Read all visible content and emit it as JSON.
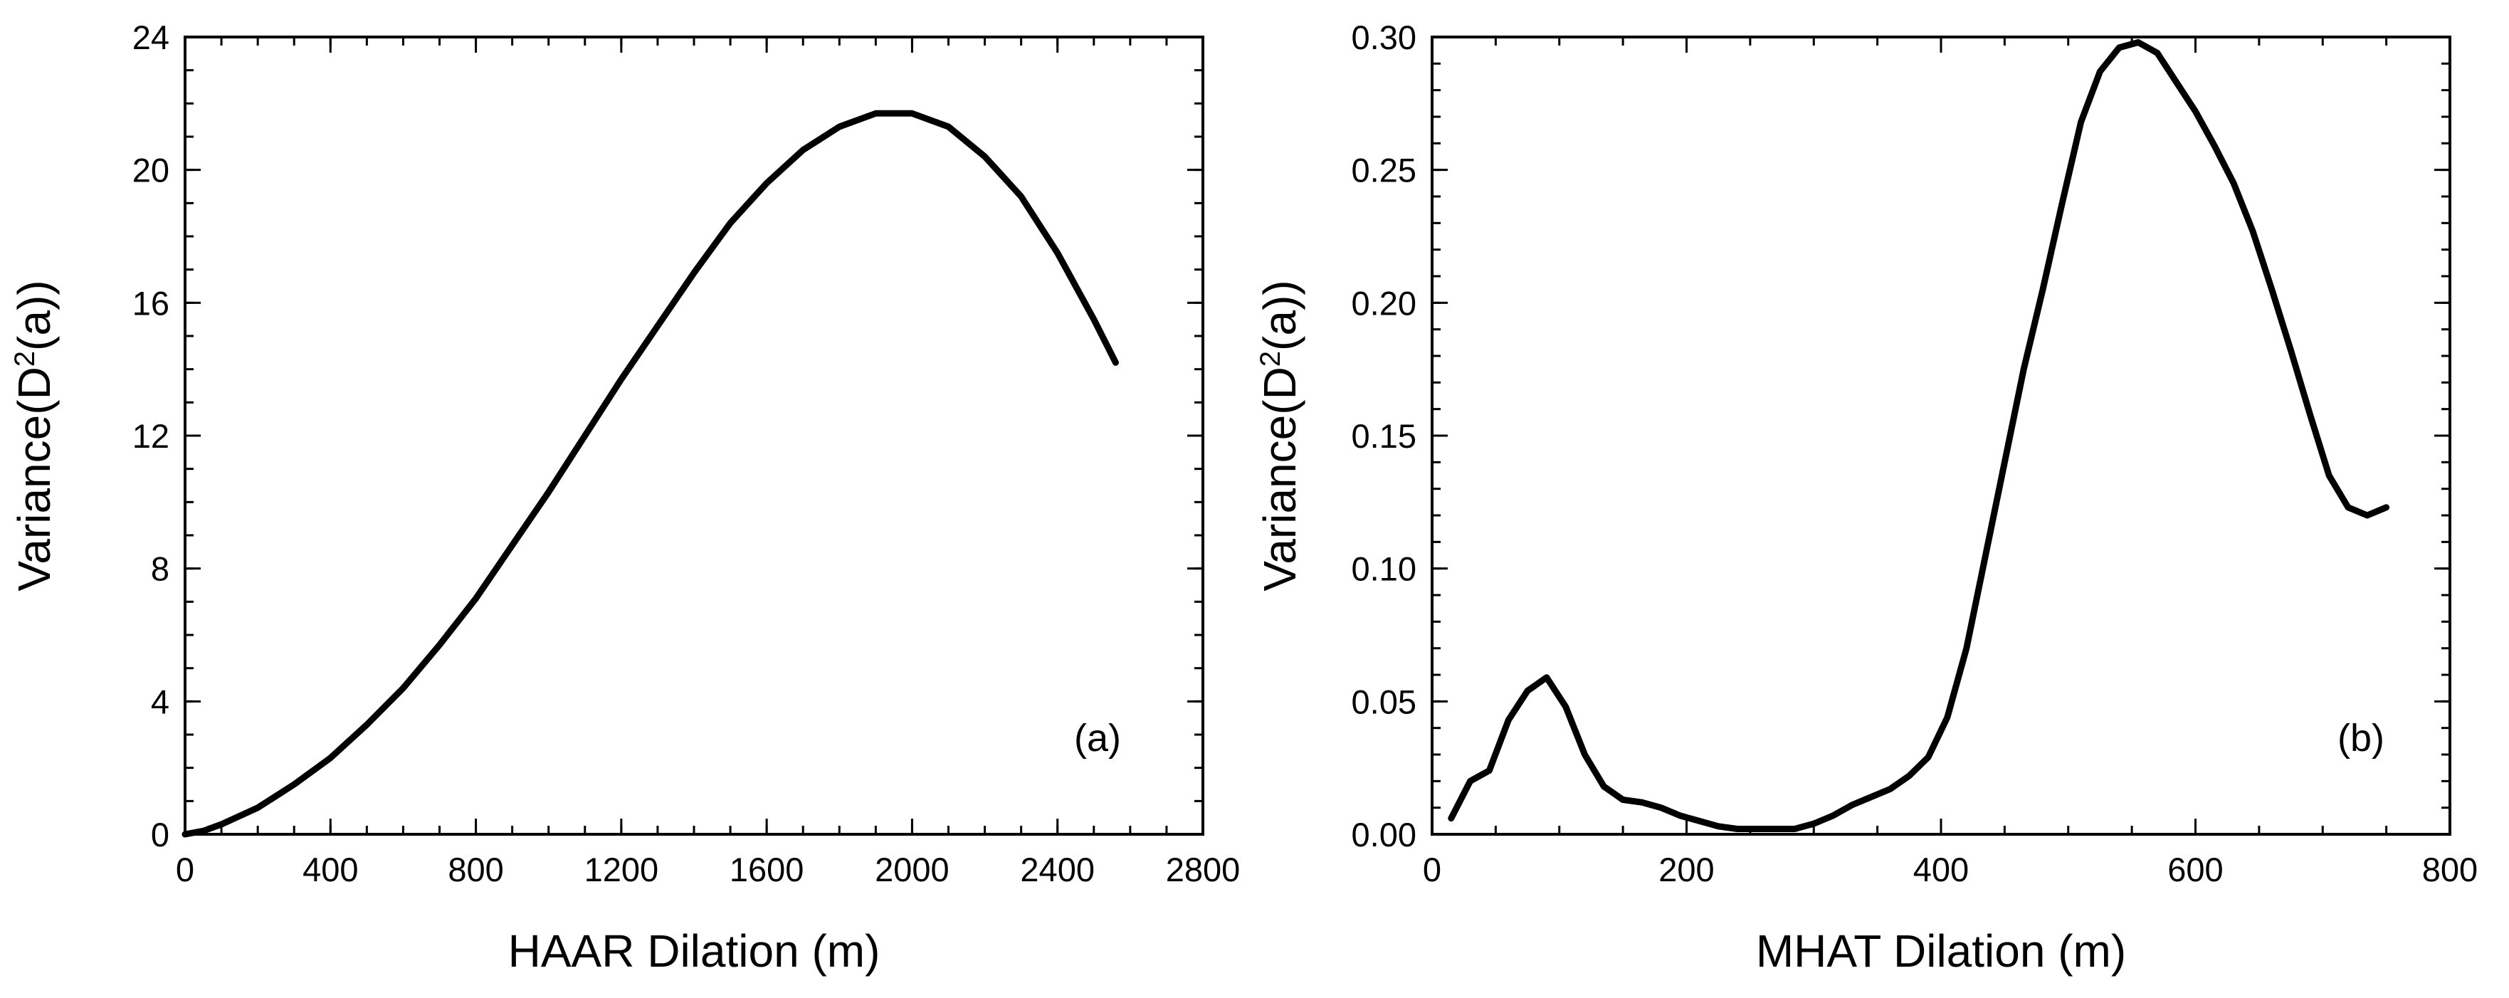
{
  "chart_data": [
    {
      "id": "a",
      "type": "line",
      "panel_label": "(a)",
      "xlabel": "HAAR Dilation (m)",
      "ylabel_prefix": "Variance(D",
      "ylabel_sup": "2",
      "ylabel_suffix": "(a))",
      "xlim": [
        0,
        2800
      ],
      "ylim": [
        0,
        24
      ],
      "xticks": [
        0,
        400,
        800,
        1200,
        1600,
        2000,
        2400,
        2800
      ],
      "xtick_labels": [
        "0",
        "400",
        "800",
        "1200",
        "1600",
        "2000",
        "2400",
        "2800"
      ],
      "yticks": [
        0,
        4,
        8,
        12,
        16,
        20,
        24
      ],
      "ytick_labels": [
        "0",
        "4",
        "8",
        "12",
        "16",
        "20",
        "24"
      ],
      "x_minor_step": 100,
      "y_minor_step": 1,
      "series": [
        {
          "name": "HAAR",
          "x": [
            0,
            50,
            100,
            200,
            300,
            400,
            500,
            600,
            700,
            800,
            900,
            1000,
            1100,
            1200,
            1300,
            1400,
            1500,
            1600,
            1700,
            1800,
            1900,
            2000,
            2100,
            2200,
            2300,
            2400,
            2500,
            2560
          ],
          "y": [
            0,
            0.1,
            0.3,
            0.8,
            1.5,
            2.3,
            3.3,
            4.4,
            5.7,
            7.1,
            8.7,
            10.3,
            12.0,
            13.7,
            15.3,
            16.9,
            18.4,
            19.6,
            20.6,
            21.3,
            21.7,
            21.7,
            21.3,
            20.4,
            19.2,
            17.5,
            15.5,
            14.2
          ]
        }
      ]
    },
    {
      "id": "b",
      "type": "line",
      "panel_label": "(b)",
      "xlabel": "MHAT Dilation (m)",
      "ylabel_prefix": "Variance(D",
      "ylabel_sup": "2",
      "ylabel_suffix": "(a))",
      "xlim": [
        0,
        800
      ],
      "ylim": [
        0,
        0.3
      ],
      "xticks": [
        0,
        200,
        400,
        600,
        800
      ],
      "xtick_labels": [
        "0",
        "200",
        "400",
        "600",
        "800"
      ],
      "yticks": [
        0,
        0.05,
        0.1,
        0.15,
        0.2,
        0.25,
        0.3
      ],
      "ytick_labels": [
        "0.00",
        "0.05",
        "0.10",
        "0.15",
        "0.20",
        "0.25",
        "0.30"
      ],
      "x_minor_step": 50,
      "y_minor_step": 0.01,
      "series": [
        {
          "name": "MHAT",
          "x": [
            15,
            30,
            45,
            60,
            75,
            90,
            105,
            120,
            135,
            150,
            165,
            180,
            195,
            210,
            225,
            240,
            255,
            270,
            285,
            300,
            315,
            330,
            345,
            360,
            375,
            390,
            405,
            420,
            435,
            450,
            465,
            480,
            495,
            510,
            525,
            540,
            555,
            570,
            585,
            600,
            615,
            630,
            645,
            660,
            675,
            690,
            705,
            720,
            735,
            750
          ],
          "y": [
            0.006,
            0.02,
            0.024,
            0.043,
            0.054,
            0.059,
            0.048,
            0.03,
            0.018,
            0.013,
            0.012,
            0.01,
            0.007,
            0.005,
            0.003,
            0.002,
            0.002,
            0.002,
            0.002,
            0.004,
            0.007,
            0.011,
            0.014,
            0.017,
            0.022,
            0.029,
            0.044,
            0.07,
            0.105,
            0.14,
            0.175,
            0.205,
            0.237,
            0.268,
            0.287,
            0.296,
            0.298,
            0.294,
            0.283,
            0.272,
            0.259,
            0.245,
            0.227,
            0.205,
            0.182,
            0.158,
            0.135,
            0.123,
            0.12,
            0.123
          ]
        }
      ]
    }
  ]
}
